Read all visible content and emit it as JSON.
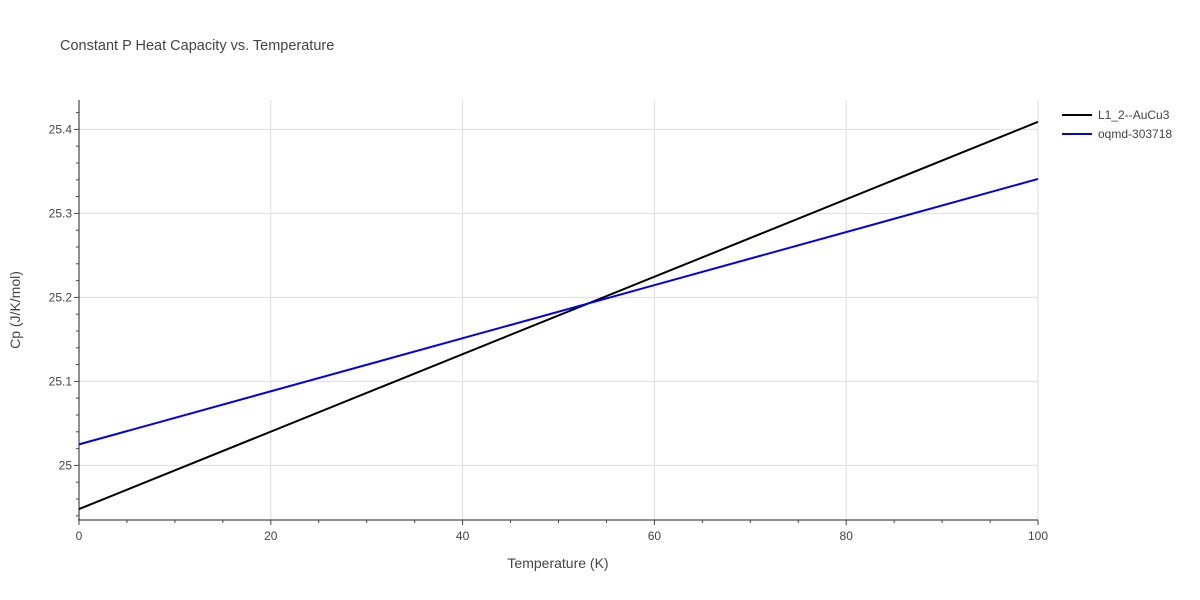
{
  "chart_data": {
    "type": "line",
    "title": "Constant P Heat Capacity vs. Temperature",
    "xlabel": "Temperature (K)",
    "ylabel": "Cp (J/K/mol)",
    "xlim": [
      0,
      100
    ],
    "ylim": [
      24.935,
      25.435
    ],
    "x_ticks": [
      0,
      20,
      40,
      60,
      80,
      100
    ],
    "x_tick_labels": [
      "0",
      "20",
      "40",
      "60",
      "80",
      "100"
    ],
    "y_ticks": [
      25.0,
      25.1,
      25.2,
      25.3,
      25.4
    ],
    "y_tick_labels": [
      "25",
      "25.1",
      "25.2",
      "25.3",
      "25.4"
    ],
    "grid": true,
    "legend_position": "top-right",
    "series": [
      {
        "name": "L1_2--AuCu3",
        "color": "#000000",
        "x": [
          0,
          100
        ],
        "y": [
          24.948,
          25.409
        ]
      },
      {
        "name": "oqmd-303718",
        "color": "#0000ee",
        "x": [
          0,
          100
        ],
        "y": [
          25.025,
          25.341
        ]
      }
    ]
  }
}
